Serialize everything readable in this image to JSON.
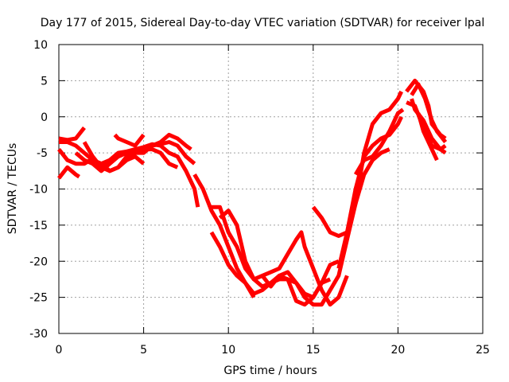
{
  "chart_data": {
    "type": "line",
    "title": "Day 177 of 2015, Sidereal Day-to-day VTEC variation (SDTVAR) for receiver lpal",
    "xlabel": "GPS time / hours",
    "ylabel": "SDTVAR / TECUs",
    "xlim": [
      0,
      25
    ],
    "ylim": [
      -30,
      10
    ],
    "xticks": [
      0,
      5,
      10,
      15,
      20,
      25
    ],
    "yticks": [
      10,
      5,
      0,
      -5,
      -10,
      -15,
      -20,
      -25,
      -30
    ],
    "grid": true,
    "line_color": "#ff0000",
    "series": [
      {
        "name": "segment-1",
        "points": [
          [
            0.0,
            -4.5
          ],
          [
            0.5,
            -6.0
          ],
          [
            1.0,
            -6.5
          ],
          [
            1.5,
            -6.5
          ],
          [
            2.0,
            -5.8
          ],
          [
            2.5,
            -6.8
          ],
          [
            3.0,
            -6.0
          ],
          [
            3.5,
            -5.0
          ],
          [
            4.0,
            -4.8
          ],
          [
            4.5,
            -4.5
          ],
          [
            5.0,
            -4.2
          ],
          [
            5.5,
            -3.8
          ],
          [
            6.0,
            -4.0
          ],
          [
            6.5,
            -5.0
          ],
          [
            7.0,
            -5.5
          ],
          [
            7.5,
            -7.5
          ],
          [
            8.0,
            -10.0
          ],
          [
            8.2,
            -12.5
          ]
        ]
      },
      {
        "name": "segment-2",
        "points": [
          [
            0.0,
            -3.5
          ],
          [
            0.5,
            -3.5
          ],
          [
            1.0,
            -4.0
          ],
          [
            1.5,
            -5.0
          ],
          [
            2.0,
            -6.0
          ],
          [
            2.5,
            -6.5
          ],
          [
            3.0,
            -6.0
          ],
          [
            3.5,
            -5.5
          ],
          [
            4.0,
            -5.0
          ],
          [
            4.5,
            -4.8
          ],
          [
            5.0,
            -4.5
          ],
          [
            5.5,
            -4.0
          ],
          [
            6.0,
            -3.8
          ],
          [
            6.5,
            -3.5
          ],
          [
            7.0,
            -4.0
          ],
          [
            7.5,
            -5.5
          ],
          [
            8.0,
            -6.5
          ]
        ]
      },
      {
        "name": "segment-3",
        "points": [
          [
            0.0,
            -3.0
          ],
          [
            0.5,
            -3.2
          ],
          [
            1.0,
            -3.0
          ],
          [
            1.5,
            -1.5
          ]
        ]
      },
      {
        "name": "segment-4",
        "points": [
          [
            0.0,
            -8.5
          ],
          [
            0.5,
            -7.0
          ],
          [
            1.0,
            -8.0
          ],
          [
            1.2,
            -8.3
          ]
        ]
      },
      {
        "name": "segment-5",
        "points": [
          [
            1.5,
            -3.5
          ],
          [
            2.0,
            -5.5
          ],
          [
            2.5,
            -7.0
          ],
          [
            3.0,
            -7.5
          ],
          [
            3.5,
            -7.0
          ],
          [
            4.0,
            -5.5
          ],
          [
            4.5,
            -5.0
          ],
          [
            5.0,
            -5.0
          ],
          [
            5.5,
            -4.0
          ],
          [
            6.0,
            -3.5
          ],
          [
            6.5,
            -2.5
          ],
          [
            7.0,
            -3.0
          ],
          [
            7.5,
            -4.0
          ],
          [
            7.8,
            -4.5
          ]
        ]
      },
      {
        "name": "segment-6",
        "points": [
          [
            1.0,
            -5.0
          ],
          [
            1.5,
            -6.0
          ],
          [
            2.0,
            -6.5
          ],
          [
            2.5,
            -7.5
          ],
          [
            3.0,
            -6.5
          ],
          [
            3.5,
            -5.5
          ],
          [
            4.0,
            -5.0
          ],
          [
            4.5,
            -4.5
          ],
          [
            5.0,
            -4.5
          ],
          [
            5.5,
            -4.5
          ],
          [
            6.0,
            -5.0
          ],
          [
            6.5,
            -6.5
          ],
          [
            7.0,
            -7.0
          ]
        ]
      },
      {
        "name": "segment-7",
        "points": [
          [
            2.0,
            -6.0
          ],
          [
            2.5,
            -6.5
          ],
          [
            3.0,
            -7.5
          ],
          [
            3.5,
            -7.0
          ],
          [
            4.0,
            -6.0
          ],
          [
            4.5,
            -5.5
          ],
          [
            5.0,
            -6.5
          ]
        ]
      },
      {
        "name": "segment-8",
        "points": [
          [
            3.3,
            -2.5
          ],
          [
            3.5,
            -3.0
          ],
          [
            4.0,
            -3.5
          ],
          [
            4.5,
            -4.0
          ],
          [
            5.0,
            -2.5
          ]
        ]
      },
      {
        "name": "segment-9",
        "points": [
          [
            9.0,
            -12.5
          ],
          [
            9.5,
            -12.5
          ],
          [
            10.0,
            -16.0
          ],
          [
            10.5,
            -18.0
          ],
          [
            11.0,
            -21.0
          ],
          [
            11.5,
            -22.5
          ],
          [
            12.0,
            -22.0
          ],
          [
            12.5,
            -21.5
          ],
          [
            13.0,
            -21.0
          ],
          [
            13.5,
            -19.0
          ],
          [
            14.0,
            -17.0
          ],
          [
            14.3,
            -16.0
          ],
          [
            14.5,
            -18.0
          ],
          [
            15.0,
            -21.0
          ],
          [
            15.5,
            -24.0
          ],
          [
            16.0,
            -26.0
          ],
          [
            16.5,
            -25.0
          ],
          [
            17.0,
            -22.0
          ]
        ]
      },
      {
        "name": "segment-10",
        "points": [
          [
            8.0,
            -8.0
          ],
          [
            8.5,
            -10.0
          ],
          [
            9.0,
            -13.0
          ],
          [
            9.5,
            -15.0
          ],
          [
            10.0,
            -18.0
          ],
          [
            10.5,
            -21.0
          ],
          [
            11.0,
            -23.0
          ],
          [
            11.5,
            -24.5
          ],
          [
            12.0,
            -24.0
          ],
          [
            12.5,
            -23.0
          ],
          [
            13.0,
            -22.5
          ],
          [
            13.5,
            -22.5
          ],
          [
            14.0,
            -23.0
          ],
          [
            14.5,
            -24.5
          ],
          [
            15.0,
            -25.0
          ],
          [
            15.5,
            -23.0
          ],
          [
            16.0,
            -20.5
          ],
          [
            16.5,
            -20.0
          ]
        ]
      },
      {
        "name": "segment-11",
        "points": [
          [
            9.5,
            -14.0
          ],
          [
            10.0,
            -13.0
          ],
          [
            10.5,
            -15.0
          ],
          [
            11.0,
            -20.0
          ],
          [
            11.5,
            -22.5
          ],
          [
            12.0,
            -23.5
          ],
          [
            12.5,
            -23.0
          ],
          [
            13.0,
            -22.0
          ],
          [
            13.5,
            -22.5
          ],
          [
            14.0,
            -25.5
          ],
          [
            14.5,
            -26.0
          ],
          [
            15.0,
            -25.0
          ],
          [
            15.5,
            -23.0
          ],
          [
            16.0,
            -22.5
          ]
        ]
      },
      {
        "name": "segment-12",
        "points": [
          [
            9.0,
            -16.0
          ],
          [
            9.5,
            -18.0
          ],
          [
            10.0,
            -20.5
          ],
          [
            10.5,
            -22.0
          ],
          [
            11.0,
            -23.0
          ],
          [
            11.5,
            -25.0
          ]
        ]
      },
      {
        "name": "segment-13",
        "points": [
          [
            12.0,
            -22.0
          ],
          [
            12.5,
            -23.5
          ],
          [
            13.0,
            -22.0
          ],
          [
            13.5,
            -21.5
          ],
          [
            14.0,
            -23.0
          ],
          [
            14.5,
            -25.0
          ],
          [
            15.0,
            -26.0
          ],
          [
            15.5,
            -26.0
          ],
          [
            16.0,
            -24.0
          ],
          [
            16.5,
            -22.0
          ],
          [
            17.0,
            -17.0
          ],
          [
            17.5,
            -12.0
          ],
          [
            18.0,
            -8.0
          ],
          [
            18.5,
            -6.0
          ],
          [
            19.0,
            -5.0
          ],
          [
            19.5,
            -4.5
          ]
        ]
      },
      {
        "name": "segment-14",
        "points": [
          [
            15.0,
            -12.5
          ],
          [
            15.5,
            -14.0
          ],
          [
            16.0,
            -16.0
          ],
          [
            16.5,
            -16.5
          ],
          [
            17.0,
            -16.0
          ],
          [
            17.5,
            -12.0
          ],
          [
            18.0,
            -5.0
          ],
          [
            18.5,
            -1.0
          ],
          [
            19.0,
            0.5
          ],
          [
            19.5,
            1.0
          ],
          [
            20.0,
            2.5
          ],
          [
            20.2,
            3.5
          ]
        ]
      },
      {
        "name": "segment-15",
        "points": [
          [
            16.5,
            -21.0
          ],
          [
            17.0,
            -16.0
          ],
          [
            17.5,
            -10.0
          ],
          [
            18.0,
            -5.5
          ],
          [
            18.5,
            -4.0
          ],
          [
            19.0,
            -3.0
          ],
          [
            19.5,
            -2.5
          ],
          [
            20.0,
            -1.0
          ],
          [
            20.2,
            0.0
          ]
        ]
      },
      {
        "name": "segment-16",
        "points": [
          [
            17.5,
            -8.0
          ],
          [
            18.0,
            -6.0
          ],
          [
            18.5,
            -5.5
          ],
          [
            19.0,
            -4.0
          ],
          [
            19.5,
            -2.0
          ],
          [
            20.0,
            0.5
          ],
          [
            20.3,
            1.0
          ]
        ]
      },
      {
        "name": "segment-17",
        "points": [
          [
            20.5,
            3.5
          ],
          [
            21.0,
            5.0
          ],
          [
            21.5,
            3.5
          ],
          [
            21.8,
            1.5
          ],
          [
            22.0,
            -1.0
          ],
          [
            22.5,
            -2.5
          ],
          [
            22.8,
            -3.0
          ]
        ]
      },
      {
        "name": "segment-18",
        "points": [
          [
            20.8,
            3.0
          ],
          [
            21.2,
            4.5
          ],
          [
            21.6,
            2.5
          ],
          [
            22.0,
            -0.5
          ],
          [
            22.3,
            -2.0
          ],
          [
            22.8,
            -3.5
          ]
        ]
      },
      {
        "name": "segment-19",
        "points": [
          [
            20.8,
            2.5
          ],
          [
            21.0,
            1.0
          ],
          [
            21.5,
            -0.5
          ],
          [
            22.0,
            -3.0
          ],
          [
            22.5,
            -4.5
          ],
          [
            22.8,
            -5.0
          ]
        ]
      },
      {
        "name": "segment-20",
        "points": [
          [
            21.2,
            0.5
          ],
          [
            21.5,
            -2.0
          ],
          [
            22.0,
            -4.5
          ],
          [
            22.3,
            -6.0
          ]
        ]
      },
      {
        "name": "segment-21",
        "points": [
          [
            20.5,
            2.0
          ],
          [
            21.0,
            1.5
          ],
          [
            21.5,
            -1.5
          ],
          [
            22.0,
            -4.0
          ],
          [
            22.5,
            -4.5
          ],
          [
            22.8,
            -4.0
          ]
        ]
      }
    ]
  }
}
